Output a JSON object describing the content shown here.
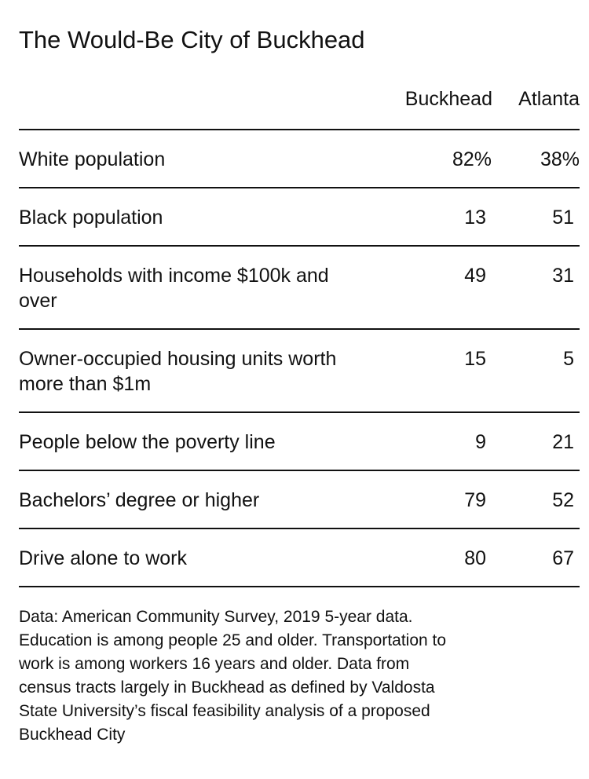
{
  "title": "The Would-Be City of Buckhead",
  "chart_data": {
    "type": "table",
    "columns": [
      "Buckhead",
      "Atlanta"
    ],
    "rows": [
      {
        "label": "White population",
        "values": [
          "82%",
          "38%"
        ]
      },
      {
        "label": "Black population",
        "values": [
          "13 ",
          "51 "
        ]
      },
      {
        "label": "Households with income $100k and over",
        "values": [
          "49 ",
          "31 "
        ]
      },
      {
        "label": "Owner-occupied housing units worth more than $1m",
        "values": [
          "15 ",
          "5 "
        ]
      },
      {
        "label": "People below the poverty line",
        "values": [
          "9 ",
          "21 "
        ]
      },
      {
        "label": "Bachelors’ degree or higher",
        "values": [
          "79 ",
          "52 "
        ]
      },
      {
        "label": "Drive alone to work",
        "values": [
          "80 ",
          "67 "
        ]
      }
    ]
  },
  "note": "Data: American Community Survey, 2019 5-year data. Education is among people 25 and older. Transportation to work is among workers 16 years and older. Data from census tracts largely in Buckhead as defined by Valdosta State University’s fiscal feasibility analysis of a proposed Buckhead City"
}
